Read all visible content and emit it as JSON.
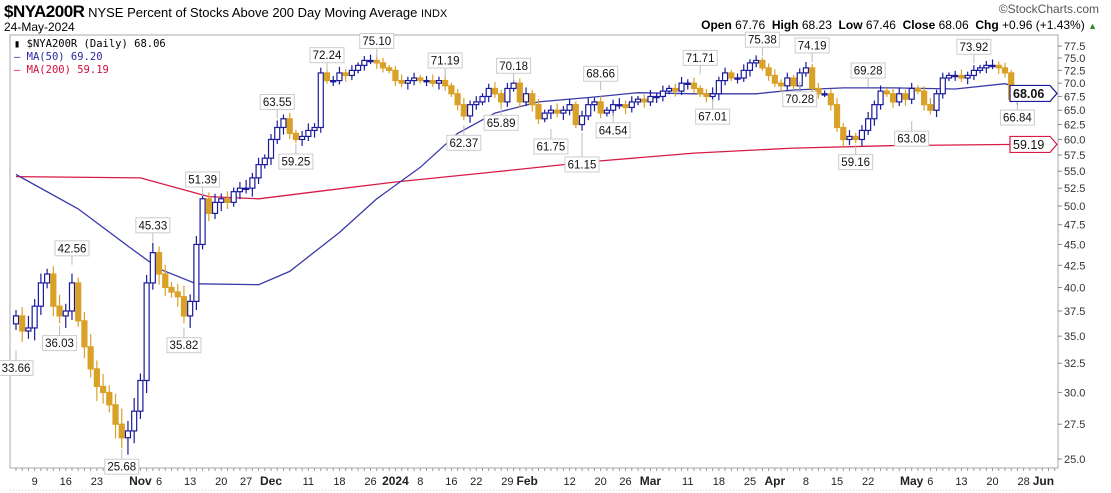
{
  "header": {
    "symbol": "$NYA200R",
    "name": "NYSE Percent of Stocks Above 200 Day Moving Average",
    "exchange": "INDX",
    "date": "24-May-2024",
    "watermark": "©StockCharts.com",
    "open_label": "Open",
    "open": "67.76",
    "high_label": "High",
    "high": "68.23",
    "low_label": "Low",
    "low": "67.46",
    "close_label": "Close",
    "close": "68.06",
    "chg_label": "Chg",
    "chg": "+0.96 (+1.43%)",
    "chg_icon": "triangle-up"
  },
  "legend": {
    "main": "$NYA200R (Daily) 68.06",
    "ma50": "MA(50) 69.20",
    "ma200": "MA(200) 59.19"
  },
  "colors": {
    "up": "#1a1a9c",
    "down": "#d9a128",
    "ma50": "#3a3aa8",
    "ma200": "#d81b46"
  },
  "chart_data": {
    "type": "candlestick",
    "scale": "log",
    "ylim": [
      24.2,
      79
    ],
    "yticks": [
      "77.5",
      "75.0",
      "72.5",
      "70.0",
      "67.5",
      "65.0",
      "62.5",
      "60.0",
      "57.5",
      "55.0",
      "52.5",
      "50.0",
      "47.5",
      "45.0",
      "42.5",
      "40.0",
      "37.5",
      "35.0",
      "32.5",
      "30.0",
      "27.5",
      "25.0"
    ],
    "price_tags": [
      {
        "label": "68.06",
        "value": 68.06,
        "series": "close"
      },
      {
        "label": "59.19",
        "value": 59.19,
        "series": "ma200"
      }
    ],
    "xticks": [
      {
        "label": "9",
        "i": 3
      },
      {
        "label": "16",
        "i": 8
      },
      {
        "label": "23",
        "i": 13
      },
      {
        "label": "Nov",
        "i": 20,
        "bold": true
      },
      {
        "label": "6",
        "i": 23
      },
      {
        "label": "13",
        "i": 28
      },
      {
        "label": "20",
        "i": 33
      },
      {
        "label": "27",
        "i": 37
      },
      {
        "label": "Dec",
        "i": 41,
        "bold": true
      },
      {
        "label": "11",
        "i": 47
      },
      {
        "label": "18",
        "i": 52
      },
      {
        "label": "26",
        "i": 57
      },
      {
        "label": "2024",
        "i": 61,
        "bold": true
      },
      {
        "label": "8",
        "i": 65
      },
      {
        "label": "16",
        "i": 70
      },
      {
        "label": "22",
        "i": 74
      },
      {
        "label": "29",
        "i": 79
      },
      {
        "label": "Feb",
        "i": 81,
        "bold": true
      },
      {
        "label": "12",
        "i": 89
      },
      {
        "label": "20",
        "i": 94
      },
      {
        "label": "26",
        "i": 98
      },
      {
        "label": "Mar",
        "i": 102,
        "bold": true
      },
      {
        "label": "11",
        "i": 108
      },
      {
        "label": "18",
        "i": 113
      },
      {
        "label": "25",
        "i": 118
      },
      {
        "label": "Apr",
        "i": 122,
        "bold": true
      },
      {
        "label": "8",
        "i": 127
      },
      {
        "label": "15",
        "i": 132
      },
      {
        "label": "22",
        "i": 137
      },
      {
        "label": "May",
        "i": 144,
        "bold": true
      },
      {
        "label": "6",
        "i": 147
      },
      {
        "label": "13",
        "i": 152
      },
      {
        "label": "20",
        "i": 157
      },
      {
        "label": "28",
        "i": 162
      },
      {
        "label": "Jun",
        "i": 165,
        "bold": true
      }
    ],
    "closes": [
      37,
      35.5,
      35.8,
      38,
      40.5,
      41.5,
      38,
      37,
      37.5,
      40.5,
      36.5,
      34,
      32,
      30.5,
      30,
      29,
      27.5,
      26.5,
      27,
      28.5,
      31,
      40.5,
      44,
      41.5,
      40,
      39.5,
      39,
      37,
      38.5,
      45,
      51,
      49,
      50.5,
      51,
      50.5,
      52,
      52.5,
      52.5,
      54,
      56,
      57,
      60,
      62,
      63.5,
      61,
      60,
      60.5,
      61.5,
      62,
      72,
      70.5,
      70.5,
      72,
      71.5,
      72.5,
      73.5,
      74.5,
      74.5,
      74,
      73,
      72.5,
      70.5,
      70,
      70.5,
      71,
      70.5,
      70.5,
      70,
      70.5,
      69.5,
      68,
      66,
      64,
      66,
      66.5,
      67.5,
      69,
      68,
      66.5,
      69,
      70,
      66.5,
      68,
      66,
      63.5,
      64.5,
      65,
      64.5,
      65,
      66,
      62.5,
      64,
      66,
      66.5,
      64.5,
      65,
      66,
      66,
      65.5,
      66.5,
      67,
      66.5,
      67.5,
      67.5,
      68.5,
      69,
      68.5,
      70,
      70,
      69,
      68,
      67.5,
      68,
      70.5,
      72,
      71,
      71,
      72.5,
      74,
      74.5,
      73,
      71.5,
      70,
      69.5,
      71,
      69.5,
      72,
      73,
      69,
      68,
      68,
      66,
      62,
      60,
      60.5,
      60,
      61.5,
      63.5,
      66,
      68.5,
      68,
      66.5,
      68,
      67,
      69,
      68.5,
      66,
      65,
      68,
      71,
      71.5,
      71.5,
      71,
      71.5,
      72.5,
      73,
      73.5,
      73.5,
      73,
      72,
      67,
      68.06
    ],
    "ma50": [
      [
        0,
        54.5
      ],
      [
        10,
        49.6
      ],
      [
        18,
        44.8
      ],
      [
        23,
        42.1
      ],
      [
        29,
        40.4
      ],
      [
        39,
        40.3
      ],
      [
        44,
        41.8
      ],
      [
        52,
        46.5
      ],
      [
        58,
        51
      ],
      [
        65,
        55.6
      ],
      [
        71,
        61
      ],
      [
        77,
        64.5
      ],
      [
        84,
        66.5
      ],
      [
        93,
        67.4
      ],
      [
        100,
        68.2
      ],
      [
        109,
        68
      ],
      [
        119,
        68
      ],
      [
        125,
        68.7
      ],
      [
        133,
        69.1
      ],
      [
        141,
        69.1
      ],
      [
        151,
        68.9
      ],
      [
        159,
        69.9
      ],
      [
        161,
        69.2
      ]
    ],
    "ma200": [
      [
        0,
        54.2
      ],
      [
        20,
        54
      ],
      [
        31,
        51.3
      ],
      [
        39,
        51
      ],
      [
        50,
        52.2
      ],
      [
        61,
        53.4
      ],
      [
        77,
        54.9
      ],
      [
        93,
        56.5
      ],
      [
        109,
        57.8
      ],
      [
        125,
        58.6
      ],
      [
        141,
        59
      ],
      [
        161,
        59.19
      ]
    ],
    "annotations": [
      {
        "label": "33.66",
        "i": 0,
        "pos": "below"
      },
      {
        "label": "36.03",
        "i": 7,
        "pos": "below"
      },
      {
        "label": "42.56",
        "i": 9,
        "pos": "above"
      },
      {
        "label": "25.68",
        "i": 17,
        "pos": "below"
      },
      {
        "label": "45.33",
        "i": 22,
        "pos": "above"
      },
      {
        "label": "35.82",
        "i": 27,
        "pos": "below"
      },
      {
        "label": "51.39",
        "i": 30,
        "pos": "above"
      },
      {
        "label": "63.55",
        "i": 42,
        "pos": "above"
      },
      {
        "label": "59.25",
        "i": 45,
        "pos": "below"
      },
      {
        "label": "72.24",
        "i": 50,
        "pos": "above"
      },
      {
        "label": "75.10",
        "i": 58,
        "pos": "above"
      },
      {
        "label": "71.19",
        "i": 69,
        "pos": "above"
      },
      {
        "label": "62.37",
        "i": 72,
        "pos": "below"
      },
      {
        "label": "65.89",
        "i": 78,
        "pos": "below"
      },
      {
        "label": "70.18",
        "i": 80,
        "pos": "above"
      },
      {
        "label": "61.75",
        "i": 86,
        "pos": "below"
      },
      {
        "label": "61.15",
        "i": 91,
        "pos": "below"
      },
      {
        "label": "68.66",
        "i": 94,
        "pos": "above"
      },
      {
        "label": "64.54",
        "i": 96,
        "pos": "below"
      },
      {
        "label": "71.71",
        "i": 110,
        "pos": "above"
      },
      {
        "label": "67.01",
        "i": 112,
        "pos": "below"
      },
      {
        "label": "75.38",
        "i": 120,
        "pos": "above"
      },
      {
        "label": "70.28",
        "i": 126,
        "pos": "below"
      },
      {
        "label": "74.19",
        "i": 128,
        "pos": "above"
      },
      {
        "label": "59.16",
        "i": 135,
        "pos": "below"
      },
      {
        "label": "69.28",
        "i": 137,
        "pos": "above"
      },
      {
        "label": "63.08",
        "i": 144,
        "pos": "below"
      },
      {
        "label": "73.92",
        "i": 154,
        "pos": "above"
      },
      {
        "label": "66.84",
        "i": 161,
        "pos": "below"
      }
    ]
  }
}
